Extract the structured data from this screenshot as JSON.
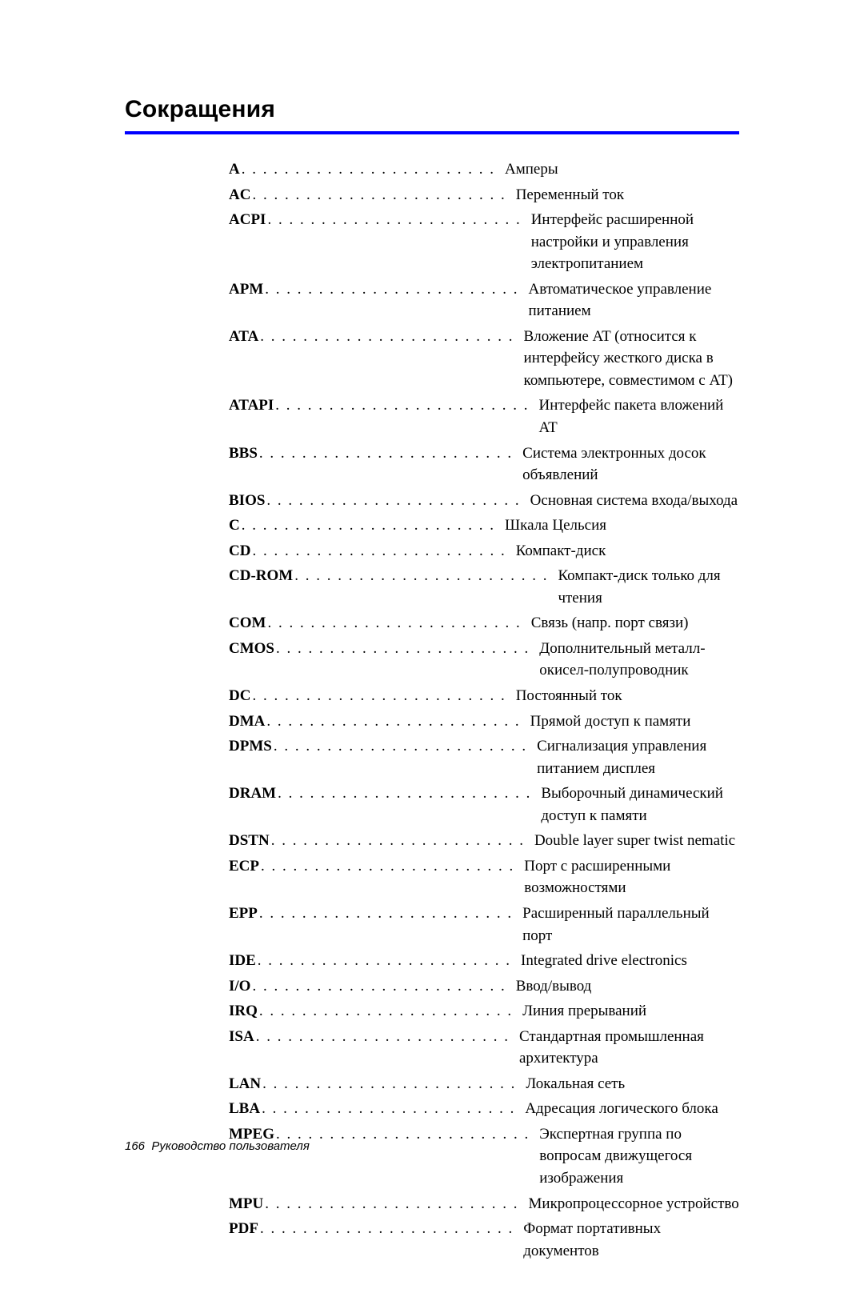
{
  "title": "Сокращения",
  "rule_color": "#0000ff",
  "typography": {
    "title_font": "Arial",
    "title_size_pt": 22,
    "body_font": "Times New Roman",
    "body_size_pt": 14,
    "footer_font": "Arial",
    "footer_size_pt": 11,
    "text_color": "#000000",
    "background_color": "#ffffff"
  },
  "glossary": [
    {
      "term": "A",
      "def": "Амперы"
    },
    {
      "term": "AC",
      "def": "Переменный ток"
    },
    {
      "term": "ACPI",
      "def": "Интерфейс расширенной настройки и управления электропитанием"
    },
    {
      "term": "APM",
      "def": "Автоматическое управление питанием"
    },
    {
      "term": "ATA",
      "def": "Вложение AT (относится к интерфейсу жесткого диска в компьютере, совместимом с AT)"
    },
    {
      "term": "ATAPI",
      "def": "Интерфейс пакета вложений AT"
    },
    {
      "term": "BBS",
      "def": "Система электронных досок объявлений"
    },
    {
      "term": "BIOS",
      "def": "Основная система входа/выхода"
    },
    {
      "term": "C",
      "def": "Шкала Цельсия"
    },
    {
      "term": "CD",
      "def": "Компакт-диск"
    },
    {
      "term": "CD-ROM",
      "def": "Компакт-диск только для чтения"
    },
    {
      "term": "COM",
      "def": "Связь (напр. порт связи)"
    },
    {
      "term": "CMOS",
      "def": "Дополнительный металл-окисел-полупроводник"
    },
    {
      "term": "DC",
      "def": "Постоянный ток"
    },
    {
      "term": "DMA",
      "def": "Прямой доступ к памяти"
    },
    {
      "term": "DPMS",
      "def": "Сигнализация управления питанием дисплея"
    },
    {
      "term": "DRAM",
      "def": "Выборочный динамический доступ к памяти"
    },
    {
      "term": "DSTN",
      "def": "Double layer super twist nematic"
    },
    {
      "term": "ECP",
      "def": "Порт с расширенными возможностями"
    },
    {
      "term": "EPP",
      "def": "Расширенный параллельный порт"
    },
    {
      "term": "IDE",
      "def": "Integrated drive electronics"
    },
    {
      "term": "I/O",
      "def": "Ввод/вывод"
    },
    {
      "term": "IRQ",
      "def": "Линия прерываний"
    },
    {
      "term": "ISA",
      "def": "Стандартная промышленная архитектура"
    },
    {
      "term": "LAN",
      "def": "Локальная сеть"
    },
    {
      "term": "LBA",
      "def": "Адресация логического блока"
    },
    {
      "term": "MPEG",
      "def": "Экспертная группа по вопросам движущегося изображения"
    },
    {
      "term": "MPU",
      "def": "Микропроцессорное устройство"
    },
    {
      "term": "PDF",
      "def": "Формат портативных документов"
    }
  ],
  "footer": {
    "page_number": "166",
    "label": "Руководство пользователя"
  }
}
